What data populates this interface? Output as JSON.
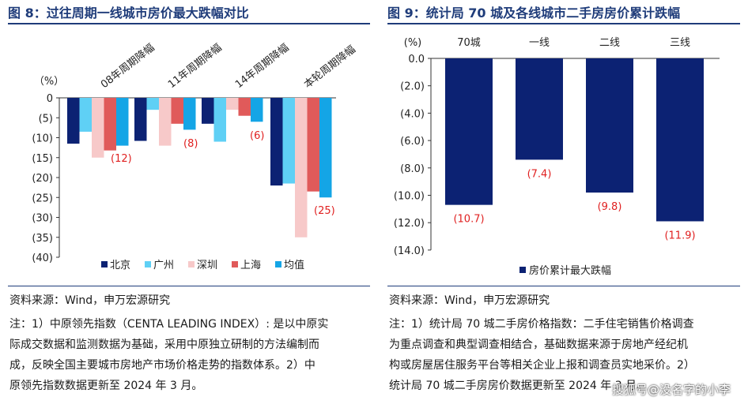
{
  "left": {
    "title": "图 8：过往周期一线城市房价最大跌幅对比",
    "source": "资料来源：Wind，申万宏源研究",
    "note_lines": [
      "注：1）中原领先指数（CENTA LEADING INDEX）: 是以中原实",
      "际成交数据和监测数据为基础，采用中原独立研制的方法编制而",
      "成，反映全国主要城市房地产市场价格走势的指数体系。2）中",
      "原领先指数数据更新至 2024 年 3 月。"
    ]
  },
  "right": {
    "title": "图 9：统计局 70 城及各线城市二手房房价累计跌幅",
    "source": "资料来源：Wind，申万宏源研究",
    "note_lines": [
      "注：1）统计局 70 城二手房价格指数：二手住宅销售价格调查",
      "为重点调查和典型调查相结合，基础数据来源于房地产经纪机",
      "构或房屋居住服务平台等相关企业上报和调查员实地采价。2）",
      "统计局 70 城二手房房价数据更新至 2024 年 3 月。"
    ]
  },
  "watermark": "搜狐号@没名字的小李",
  "chart_data": [
    {
      "type": "bar",
      "title": "图 8：过往周期一线城市房价最大跌幅对比",
      "ylabel": "（%）",
      "ylim": [
        -40,
        0
      ],
      "yticks": [
        "0",
        "(5)",
        "(10)",
        "(15)",
        "(20)",
        "(25)",
        "(30)",
        "(35)",
        "(40)"
      ],
      "categories": [
        "08年周期降幅",
        "11年周期降幅",
        "14年周期降幅",
        "本轮周期降幅"
      ],
      "series": [
        {
          "name": "北京",
          "color": "#0c2273",
          "values": [
            -11.5,
            -10.8,
            -6.5,
            -22
          ]
        },
        {
          "name": "广州",
          "color": "#5fd0f5",
          "values": [
            -8.5,
            -3,
            -11,
            -21.5
          ]
        },
        {
          "name": "深圳",
          "color": "#f7c9c9",
          "values": [
            -15,
            -12,
            -3,
            -35
          ]
        },
        {
          "name": "上海",
          "color": "#e05a5a",
          "values": [
            -13.2,
            -6.5,
            -4.5,
            -23.5
          ]
        },
        {
          "name": "均值",
          "color": "#14a5e6",
          "values": [
            -12,
            -8,
            -6,
            -25
          ]
        }
      ],
      "annotations": [
        "(12)",
        "(8)",
        "(6)",
        "(25)"
      ],
      "legend": "bottom",
      "grid": false
    },
    {
      "type": "bar",
      "title": "图 9：统计局 70 城及各线城市二手房房价累计跌幅",
      "ylabel": "(%)",
      "ylim": [
        -14,
        0
      ],
      "yticks": [
        "0.0",
        "(2.0)",
        "(4.0)",
        "(6.0)",
        "(8.0)",
        "(10.0)",
        "(12.0)",
        "(14.0)"
      ],
      "categories": [
        "70城",
        "一线",
        "二线",
        "三线"
      ],
      "series": [
        {
          "name": "房价累计最大跌幅",
          "color": "#0c2273",
          "values": [
            -10.7,
            -7.4,
            -9.8,
            -11.9
          ]
        }
      ],
      "data_labels": [
        "(10.7)",
        "(7.4)",
        "(9.8)",
        "(11.9)"
      ],
      "legend": "bottom",
      "grid": false
    }
  ]
}
